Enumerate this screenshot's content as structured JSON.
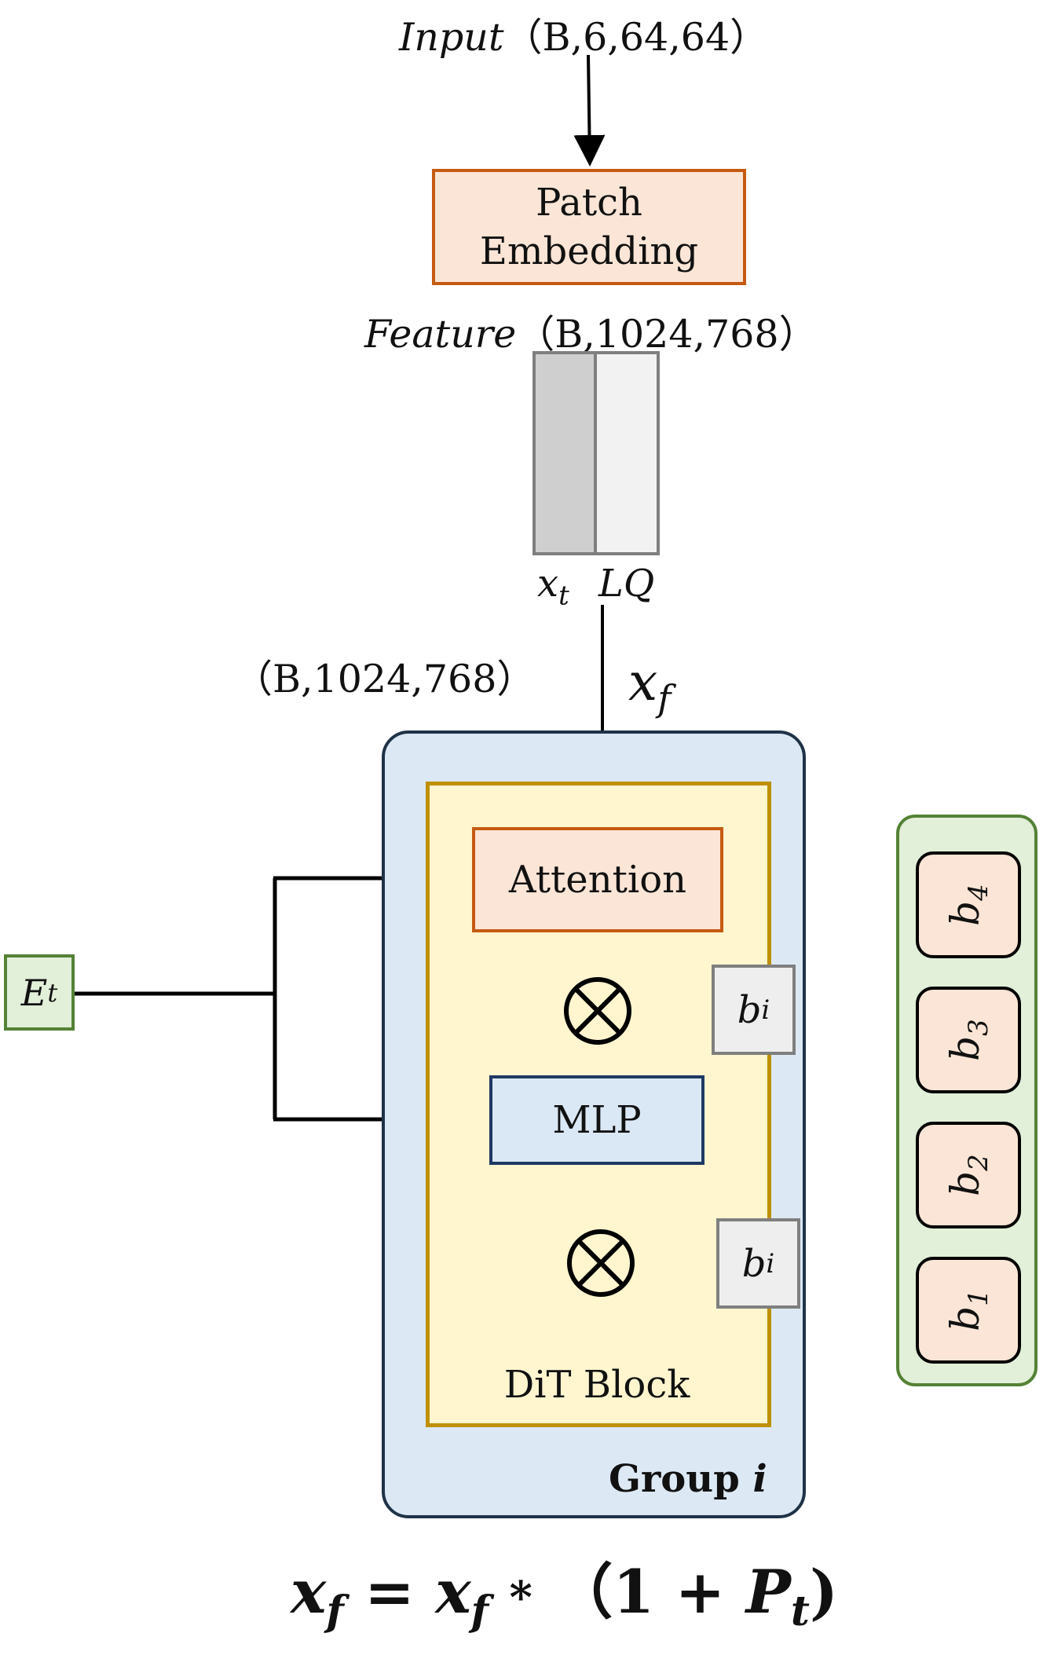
{
  "input_label": {
    "name": "Input",
    "shape": "（B,6,64,64）"
  },
  "patch_embedding": {
    "line1": "Patch",
    "line2": "Embedding"
  },
  "feature_label": {
    "name": "Feature",
    "shape": "（B,1024,768）"
  },
  "feature_parts": {
    "left": "x",
    "left_sub": "t",
    "right": "LQ"
  },
  "side_shape": "（B,1024,768）",
  "xf_label": {
    "base": "x",
    "sub": "f"
  },
  "et_label": {
    "base": "E",
    "sub": "t"
  },
  "group": {
    "prefix": "Group ",
    "index": "i"
  },
  "dit_block": {
    "attention": "Attention",
    "mlp": "MLP",
    "footer": "DiT Block",
    "multiply_symbol": "⊗",
    "bias_base": "b",
    "bias_sub": "i"
  },
  "bias_stack": [
    {
      "base": "b",
      "sub": "4"
    },
    {
      "base": "b",
      "sub": "3"
    },
    {
      "base": "b",
      "sub": "2"
    },
    {
      "base": "b",
      "sub": "1"
    }
  ],
  "formula": {
    "lhs_base": "x",
    "lhs_sub": "f",
    "eq": "=",
    "rhs_base": "x",
    "rhs_sub": "f",
    "times": "*",
    "paren_open": "（",
    "one": "1",
    "plus": "+",
    "p_base": "P",
    "p_sub": "t",
    "paren_close": ")"
  },
  "colors": {
    "patch_fill": "#fbe5d6",
    "patch_border": "#c55a11",
    "group_fill": "#dce9f5",
    "group_border": "#1f3347",
    "dit_fill": "#fff5cf",
    "dit_border": "#bf9000",
    "mlp_fill": "#dae8f5",
    "mlp_border": "#1f3864",
    "bias_fill": "#eeeeee",
    "bias_border": "#7f7f7f",
    "stack_fill": "#e2efd9",
    "stack_border": "#548235",
    "feat_dark": "#cfcfcf",
    "feat_light": "#f2f2f2",
    "feat_border": "#7f7f7f"
  }
}
